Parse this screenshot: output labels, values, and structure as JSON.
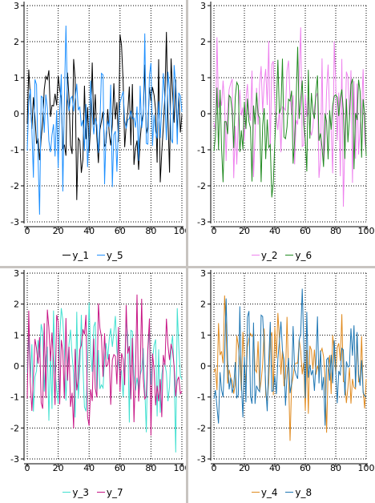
{
  "chart_data": [
    {
      "type": "line",
      "panel": "top-left",
      "x_range": [
        0,
        100
      ],
      "ylim": [
        -3,
        3
      ],
      "xticks": [
        0,
        20,
        40,
        60,
        80,
        100
      ],
      "yticks": [
        -3,
        -2,
        -1,
        0,
        1,
        2,
        3
      ],
      "grid": true,
      "legend_position": "bottom",
      "series": [
        {
          "name": "y_1",
          "color": "#000000",
          "seed": 11
        },
        {
          "name": "y_5",
          "color": "#1e90ff",
          "seed": 15
        }
      ]
    },
    {
      "type": "line",
      "panel": "top-right",
      "x_range": [
        0,
        100
      ],
      "ylim": [
        -3,
        3
      ],
      "xticks": [
        0,
        20,
        40,
        60,
        80,
        100
      ],
      "yticks": [
        -3,
        -2,
        -1,
        0,
        1,
        2,
        3
      ],
      "grid": true,
      "legend_position": "bottom",
      "series": [
        {
          "name": "y_2",
          "color": "#ee82ee",
          "seed": 22
        },
        {
          "name": "y_6",
          "color": "#228b22",
          "seed": 26
        }
      ]
    },
    {
      "type": "line",
      "panel": "bottom-left",
      "x_range": [
        0,
        100
      ],
      "ylim": [
        -3,
        3
      ],
      "xticks": [
        0,
        20,
        40,
        60,
        80,
        100
      ],
      "yticks": [
        -3,
        -2,
        -1,
        0,
        1,
        2,
        3
      ],
      "grid": true,
      "legend_position": "bottom",
      "series": [
        {
          "name": "y_3",
          "color": "#40e0d0",
          "seed": 33
        },
        {
          "name": "y_7",
          "color": "#c71585",
          "seed": 37
        }
      ]
    },
    {
      "type": "line",
      "panel": "bottom-right",
      "x_range": [
        0,
        100
      ],
      "ylim": [
        -3,
        3
      ],
      "xticks": [
        0,
        20,
        40,
        60,
        80,
        100
      ],
      "yticks": [
        -3,
        -2,
        -1,
        0,
        1,
        2,
        3
      ],
      "grid": true,
      "legend_position": "bottom",
      "series": [
        {
          "name": "y_4",
          "color": "#e08a1e",
          "seed": 44
        },
        {
          "name": "y_8",
          "color": "#1f77b4",
          "seed": 48
        }
      ]
    }
  ]
}
